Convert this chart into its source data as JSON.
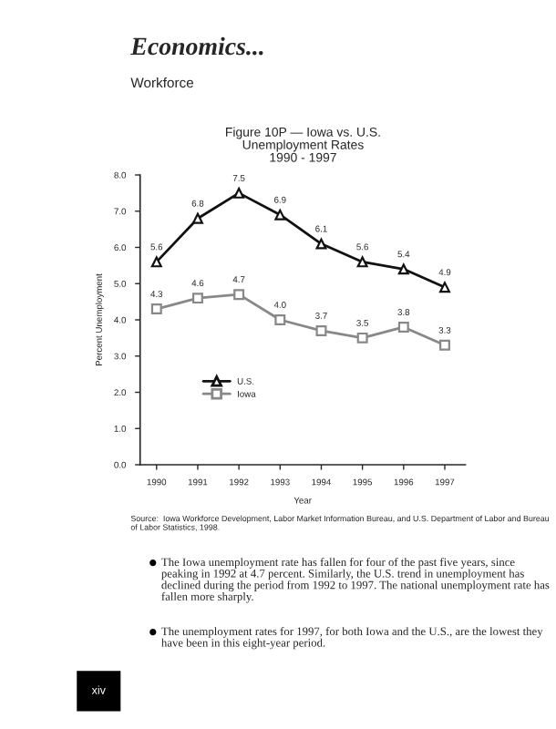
{
  "chart_data": {
    "type": "line",
    "title": "Figure 10P — Iowa vs. U.S.\nUnemployment Rates\n1990 - 1997",
    "xlabel": "Year",
    "ylabel": "Percent Unemployment",
    "x": [
      1990,
      1991,
      1992,
      1993,
      1994,
      1995,
      1996,
      1997
    ],
    "series": [
      {
        "name": "U.S.",
        "color": "#111111",
        "marker": "triangle",
        "values": [
          5.6,
          6.8,
          7.5,
          6.9,
          6.1,
          5.6,
          5.4,
          4.9
        ],
        "value_labels": [
          "5.6",
          "6.8",
          "7.5",
          "6.9",
          "6.1",
          "5.6",
          "5.4",
          "4.9"
        ]
      },
      {
        "name": "Iowa",
        "color": "#888888",
        "marker": "square",
        "values": [
          4.3,
          4.6,
          4.7,
          4.0,
          3.7,
          3.5,
          3.8,
          3.3
        ],
        "value_labels": [
          "4.3",
          "4.6",
          "4.7",
          "4.0",
          "3.7",
          "3.5",
          "3.8",
          "3.3"
        ]
      }
    ],
    "xlim": [
      1989.6,
      1997.5
    ],
    "xticks": [
      1990,
      1991,
      1992,
      1993,
      1994,
      1995,
      1996,
      1997
    ],
    "ylim": [
      0,
      8
    ],
    "yticks": [
      {
        "value": 0,
        "label": "0.0"
      },
      {
        "value": 1,
        "label": "1.0"
      },
      {
        "value": 2,
        "label": "2.0"
      },
      {
        "value": 3,
        "label": "3.0"
      },
      {
        "value": 4,
        "label": "4.0"
      },
      {
        "value": 5,
        "label": "5.0"
      },
      {
        "value": 6,
        "label": "6.0"
      },
      {
        "value": 7,
        "label": "7.0"
      },
      {
        "value": 8,
        "label": "8.0"
      }
    ],
    "grid": false,
    "legend": "bottom left",
    "line_style": "solid",
    "annotations": [
      "Economics...",
      "Workforce",
      "Source:  Iowa Workforce Development, Labor Market Information Bureau, and U.S. Department of Labor and Bureau of Labor Statistics, 1998.",
      "The Iowa unemployment rate has fallen for four of the past five years, since peaking in 1992 at 4.7 percent. Similarly, the U.S. trend in unemployment has declined during the period from 1992 to 1997. The national unemployment rate has fallen more sharply.",
      "The unemployment rates for 1997, for both Iowa and the U.S., are the lowest they have been in this eight-year period.",
      "xiv"
    ]
  }
}
